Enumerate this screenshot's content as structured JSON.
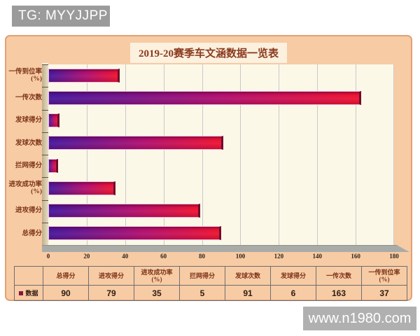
{
  "watermarks": {
    "tg_badge": "TG: MYYJJPP",
    "site_badge": "www.n1980.com"
  },
  "chart_data": {
    "type": "bar",
    "orientation": "horizontal",
    "title": "2019-20赛季车文涵数据一览表",
    "series_name": "数据",
    "categories": [
      "一传到位率\n(%)",
      "一传次数",
      "发球得分",
      "发球次数",
      "拦网得分",
      "进攻成功率\n(%)",
      "进攻得分",
      "总得分"
    ],
    "values": [
      37,
      163,
      6,
      91,
      5,
      35,
      79,
      90
    ],
    "xlim": [
      0,
      180
    ],
    "x_ticks": [
      0,
      20,
      40,
      60,
      80,
      100,
      120,
      140,
      160,
      180
    ],
    "grid": "vertical",
    "legend_position": "bottom-table"
  },
  "table": {
    "row_label": "数据",
    "columns": [
      "总得分",
      "进攻得分",
      "进攻成功率\n(%)",
      "拦网得分",
      "发球次数",
      "发球得分",
      "一传次数",
      "一传到位率\n(%)"
    ],
    "values": [
      90,
      79,
      35,
      5,
      91,
      6,
      163,
      37
    ]
  },
  "colors": {
    "panel_bg": "#f7cba4",
    "panel_border": "#e2a175",
    "title_bg": "#fcf0de",
    "title_text": "#8a3a1e",
    "label_text": "#7c3418",
    "plot_bg": "#fbf8e8",
    "gridline": "#c9c9c9",
    "bar_gradient_start": "#45189d",
    "bar_gradient_mid": "#b01070",
    "bar_gradient_end": "#ee1330",
    "bar_cap": "#6d0e2f",
    "wall": "#e8ddc4",
    "wall_dark": "#bfae8d",
    "floor": "#a9aba8",
    "legend_marker": "#8b1540",
    "badge_bg": "#9b9b9b",
    "badge_bg2": "#b0b0b0",
    "badge_text": "#ffffff",
    "table_border": "#6e6e6e",
    "value_text": "#2e1c10"
  }
}
